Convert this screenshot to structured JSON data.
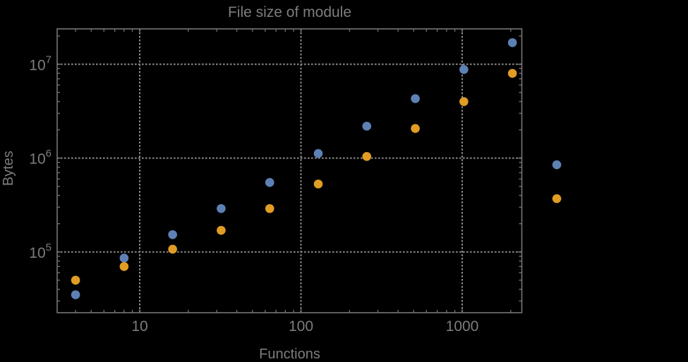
{
  "chart_data": {
    "type": "scatter",
    "title": "File size of module",
    "xlabel": "Functions",
    "ylabel": "Bytes",
    "x_scale": "log",
    "y_scale": "log",
    "grid": "dotted",
    "legend": "none",
    "x_ticks": [
      {
        "value": 10,
        "label": "10"
      },
      {
        "value": 100,
        "label": "100"
      },
      {
        "value": 1000,
        "label": "1000"
      }
    ],
    "y_ticks": [
      {
        "value": 100000,
        "label": "10^5",
        "base": "10",
        "exp": "5"
      },
      {
        "value": 1000000,
        "label": "10^6",
        "base": "10",
        "exp": "6"
      },
      {
        "value": 10000000,
        "label": "10^7",
        "base": "10",
        "exp": "7"
      }
    ],
    "x_frame_range": [
      3.1,
      2330
    ],
    "y_frame_range": [
      22000,
      24000000
    ],
    "plot_range_clipping": false,
    "x": [
      4,
      8,
      16,
      32,
      64,
      128,
      256,
      512,
      1024,
      2048,
      3860
    ],
    "series": [
      {
        "name": "series-blue",
        "color": "#5E81B5",
        "values": [
          35000,
          86000,
          153000,
          290000,
          550000,
          1120000,
          2190000,
          4300000,
          8800000,
          17000000,
          850000
        ]
      },
      {
        "name": "series-orange",
        "color": "#E19C24",
        "values": [
          50000,
          70000,
          107000,
          170000,
          290000,
          530000,
          1040000,
          2070000,
          4000000,
          8000000,
          370000
        ]
      }
    ],
    "colors": {
      "background": "#000000",
      "frame": "#757575",
      "grid": "#8a8a8a",
      "text": "#7d7d7d"
    }
  }
}
